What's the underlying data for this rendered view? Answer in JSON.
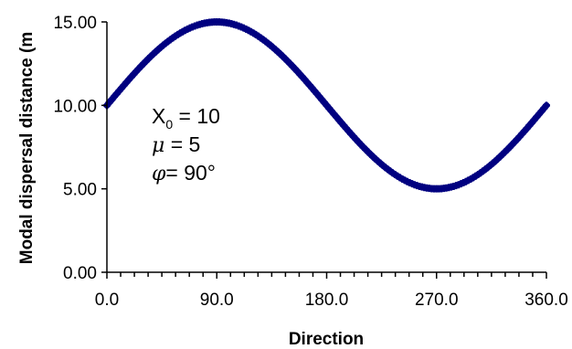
{
  "chart_data": {
    "type": "scatter",
    "title": "",
    "xlabel": "Direction",
    "ylabel": "Modal dispersal distance (m",
    "xlim": [
      0,
      360
    ],
    "ylim": [
      0,
      15
    ],
    "x_tick_labels": [
      "0.0",
      "90.0",
      "180.0",
      "270.0",
      "360.0"
    ],
    "x_minor_ticks_per_major": 8,
    "y_tick_labels": [
      "0.00",
      "5.00",
      "10.00",
      "15.00"
    ],
    "grid": false,
    "legend": "none",
    "series_color": "#000080",
    "marker": "plus",
    "model": {
      "X0": 10,
      "mu": 5,
      "phi_deg": 90,
      "x_step": 2
    },
    "annotations": {
      "x0_main": "X",
      "x0_sub": "0",
      "x0_rest": " = 10",
      "mu_symbol": "μ",
      "mu_rest": " = 5",
      "phi_symbol": "φ",
      "phi_rest": "= 90°"
    }
  }
}
